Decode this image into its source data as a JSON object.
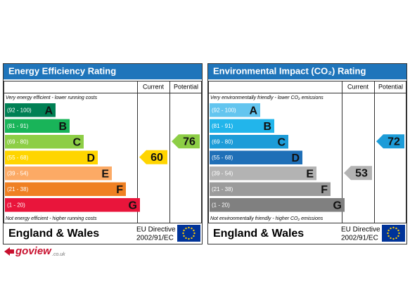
{
  "panels": [
    {
      "title": "Energy Efficiency Rating",
      "columns": [
        "Current",
        "Potential"
      ],
      "top_note": "Very energy efficient - lower running costs",
      "bottom_note": "Not energy efficient - higher running costs",
      "bands": [
        {
          "range": "(92 - 100)",
          "letter": "A",
          "color": "#008054"
        },
        {
          "range": "(81 - 91)",
          "letter": "B",
          "color": "#19b459"
        },
        {
          "range": "(69 - 80)",
          "letter": "C",
          "color": "#8dce46"
        },
        {
          "range": "(55 - 68)",
          "letter": "D",
          "color": "#ffd500"
        },
        {
          "range": "(39 - 54)",
          "letter": "E",
          "color": "#fcaa65"
        },
        {
          "range": "(21 - 38)",
          "letter": "F",
          "color": "#ef8023"
        },
        {
          "range": "(1 - 20)",
          "letter": "G",
          "color": "#e9153b"
        }
      ],
      "current": 60,
      "potential": 76,
      "region": "England & Wales",
      "directive": [
        "EU Directive",
        "2002/91/EC"
      ]
    },
    {
      "title": "Environmental Impact (CO₂) Rating",
      "columns": [
        "Current",
        "Potential"
      ],
      "top_note": "Very environmentally friendly - lower CO₂ emissions",
      "bottom_note": "Not environmentally friendly - higher CO₂ emissions",
      "bands": [
        {
          "range": "(92 - 100)",
          "letter": "A",
          "color": "#63c5ef"
        },
        {
          "range": "(81 - 91)",
          "letter": "B",
          "color": "#22b5eb"
        },
        {
          "range": "(69 - 80)",
          "letter": "C",
          "color": "#1d9cd8"
        },
        {
          "range": "(55 - 68)",
          "letter": "D",
          "color": "#1f6fb7"
        },
        {
          "range": "(39 - 54)",
          "letter": "E",
          "color": "#b3b3b3"
        },
        {
          "range": "(21 - 38)",
          "letter": "F",
          "color": "#9b9b9b"
        },
        {
          "range": "(1 - 20)",
          "letter": "G",
          "color": "#808080"
        }
      ],
      "current": 53,
      "potential": 72,
      "region": "England & Wales",
      "directive": [
        "EU Directive",
        "2002/91/EC"
      ]
    }
  ],
  "logo": {
    "name": "goview",
    "suffix": ".co.uk"
  }
}
